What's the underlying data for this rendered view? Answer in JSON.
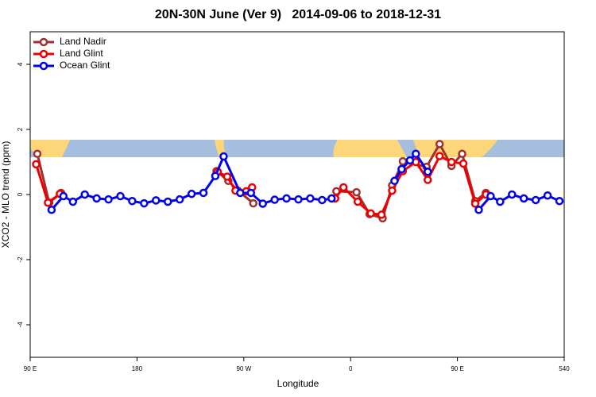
{
  "chart_data": {
    "type": "line",
    "title": "20N-30N June (Ver 9)   2014-09-06 to 2018-12-31",
    "xlabel": "Longitude",
    "ylabel": "XCO2 - MLO trend (ppm)",
    "xlim": [
      90,
      540
    ],
    "xticks": [
      {
        "value": 90,
        "label": "90 E"
      },
      180,
      {
        "value": 270,
        "label": "90 W"
      },
      {
        "value": 360,
        "label": "0"
      },
      {
        "value": 450,
        "label": "90 E"
      },
      540
    ],
    "ylim": [
      -5,
      5
    ],
    "yticks": [
      -4,
      -2,
      0,
      2,
      4
    ],
    "legend": "top-left",
    "series": [
      {
        "name": "Land Nadir",
        "color": "#a03030",
        "x": [
          96,
          106,
          116,
          null,
          247,
          257,
          265,
          278,
          null,
          348,
          365,
          376,
          387,
          395,
          404,
          424,
          435,
          445,
          454,
          465,
          474
        ],
        "values": [
          1.25,
          -0.25,
          0.05,
          null,
          0.72,
          0.42,
          0.12,
          -0.27,
          null,
          0.1,
          0.07,
          -0.6,
          -0.73,
          0.28,
          1.02,
          0.85,
          1.55,
          0.88,
          1.25,
          -0.2,
          0.05
        ]
      },
      {
        "name": "Land Glint",
        "color": "#ee0000",
        "x": [
          95,
          105,
          115,
          null,
          248,
          256,
          263,
          272,
          277,
          null,
          347,
          354,
          366,
          377,
          386,
          395,
          404,
          415,
          425,
          435,
          445,
          455,
          465,
          474
        ],
        "values": [
          0.93,
          -0.25,
          0.02,
          null,
          0.7,
          0.55,
          0.12,
          0.1,
          0.22,
          null,
          -0.12,
          0.22,
          -0.22,
          -0.58,
          -0.62,
          0.12,
          0.72,
          1.0,
          0.45,
          1.18,
          1.0,
          0.95,
          -0.28,
          0.0
        ]
      },
      {
        "name": "Ocean Glint",
        "color": "#0000ee",
        "x": [
          108,
          118,
          126,
          136,
          146,
          156,
          166,
          176,
          186,
          196,
          206,
          216,
          226,
          236,
          246,
          253,
          267,
          276,
          286,
          296,
          306,
          316,
          326,
          336,
          344,
          null,
          397,
          403,
          410,
          415,
          425,
          null,
          468,
          478,
          486,
          496,
          506,
          516,
          526,
          536
        ],
        "values": [
          -0.47,
          -0.05,
          -0.22,
          0,
          -0.12,
          -0.15,
          -0.05,
          -0.2,
          -0.27,
          -0.18,
          -0.22,
          -0.15,
          0.02,
          0.05,
          0.57,
          1.17,
          0.05,
          0.05,
          -0.28,
          -0.16,
          -0.12,
          -0.15,
          -0.12,
          -0.17,
          -0.12,
          null,
          0.42,
          0.78,
          1.05,
          1.25,
          0.7,
          null,
          -0.47,
          -0.05,
          -0.22,
          0,
          -0.12,
          -0.17,
          -0.03,
          -0.2
        ]
      }
    ]
  }
}
